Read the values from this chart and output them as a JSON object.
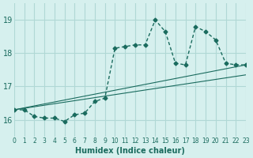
{
  "xlabel": "Humidex (Indice chaleur)",
  "ylabel": "",
  "background_color": "#d6f0ee",
  "grid_color": "#b0d8d5",
  "line_color": "#1a6b5e",
  "xlim": [
    0,
    23
  ],
  "ylim": [
    15.5,
    19.5
  ],
  "yticks": [
    16,
    17,
    18,
    19
  ],
  "xticks": [
    0,
    1,
    2,
    3,
    4,
    5,
    6,
    7,
    8,
    9,
    10,
    11,
    12,
    13,
    14,
    15,
    16,
    17,
    18,
    19,
    20,
    21,
    22,
    23
  ],
  "line1_x": [
    0,
    1,
    2,
    3,
    4,
    5,
    6,
    7,
    8,
    9,
    10,
    11,
    12,
    13,
    14,
    15,
    16,
    17,
    18,
    19,
    20,
    21,
    22,
    23
  ],
  "line1_y": [
    16.3,
    16.3,
    16.1,
    16.05,
    16.05,
    15.95,
    16.15,
    16.2,
    16.55,
    16.65,
    18.15,
    18.2,
    18.25,
    18.25,
    19.0,
    18.65,
    17.7,
    17.65,
    18.8,
    18.65,
    18.4,
    17.7,
    17.65,
    17.65
  ],
  "line2_x": [
    0,
    23
  ],
  "line2_y": [
    16.3,
    17.65
  ],
  "line3_x": [
    0,
    23
  ],
  "line3_y": [
    16.3,
    17.35
  ]
}
